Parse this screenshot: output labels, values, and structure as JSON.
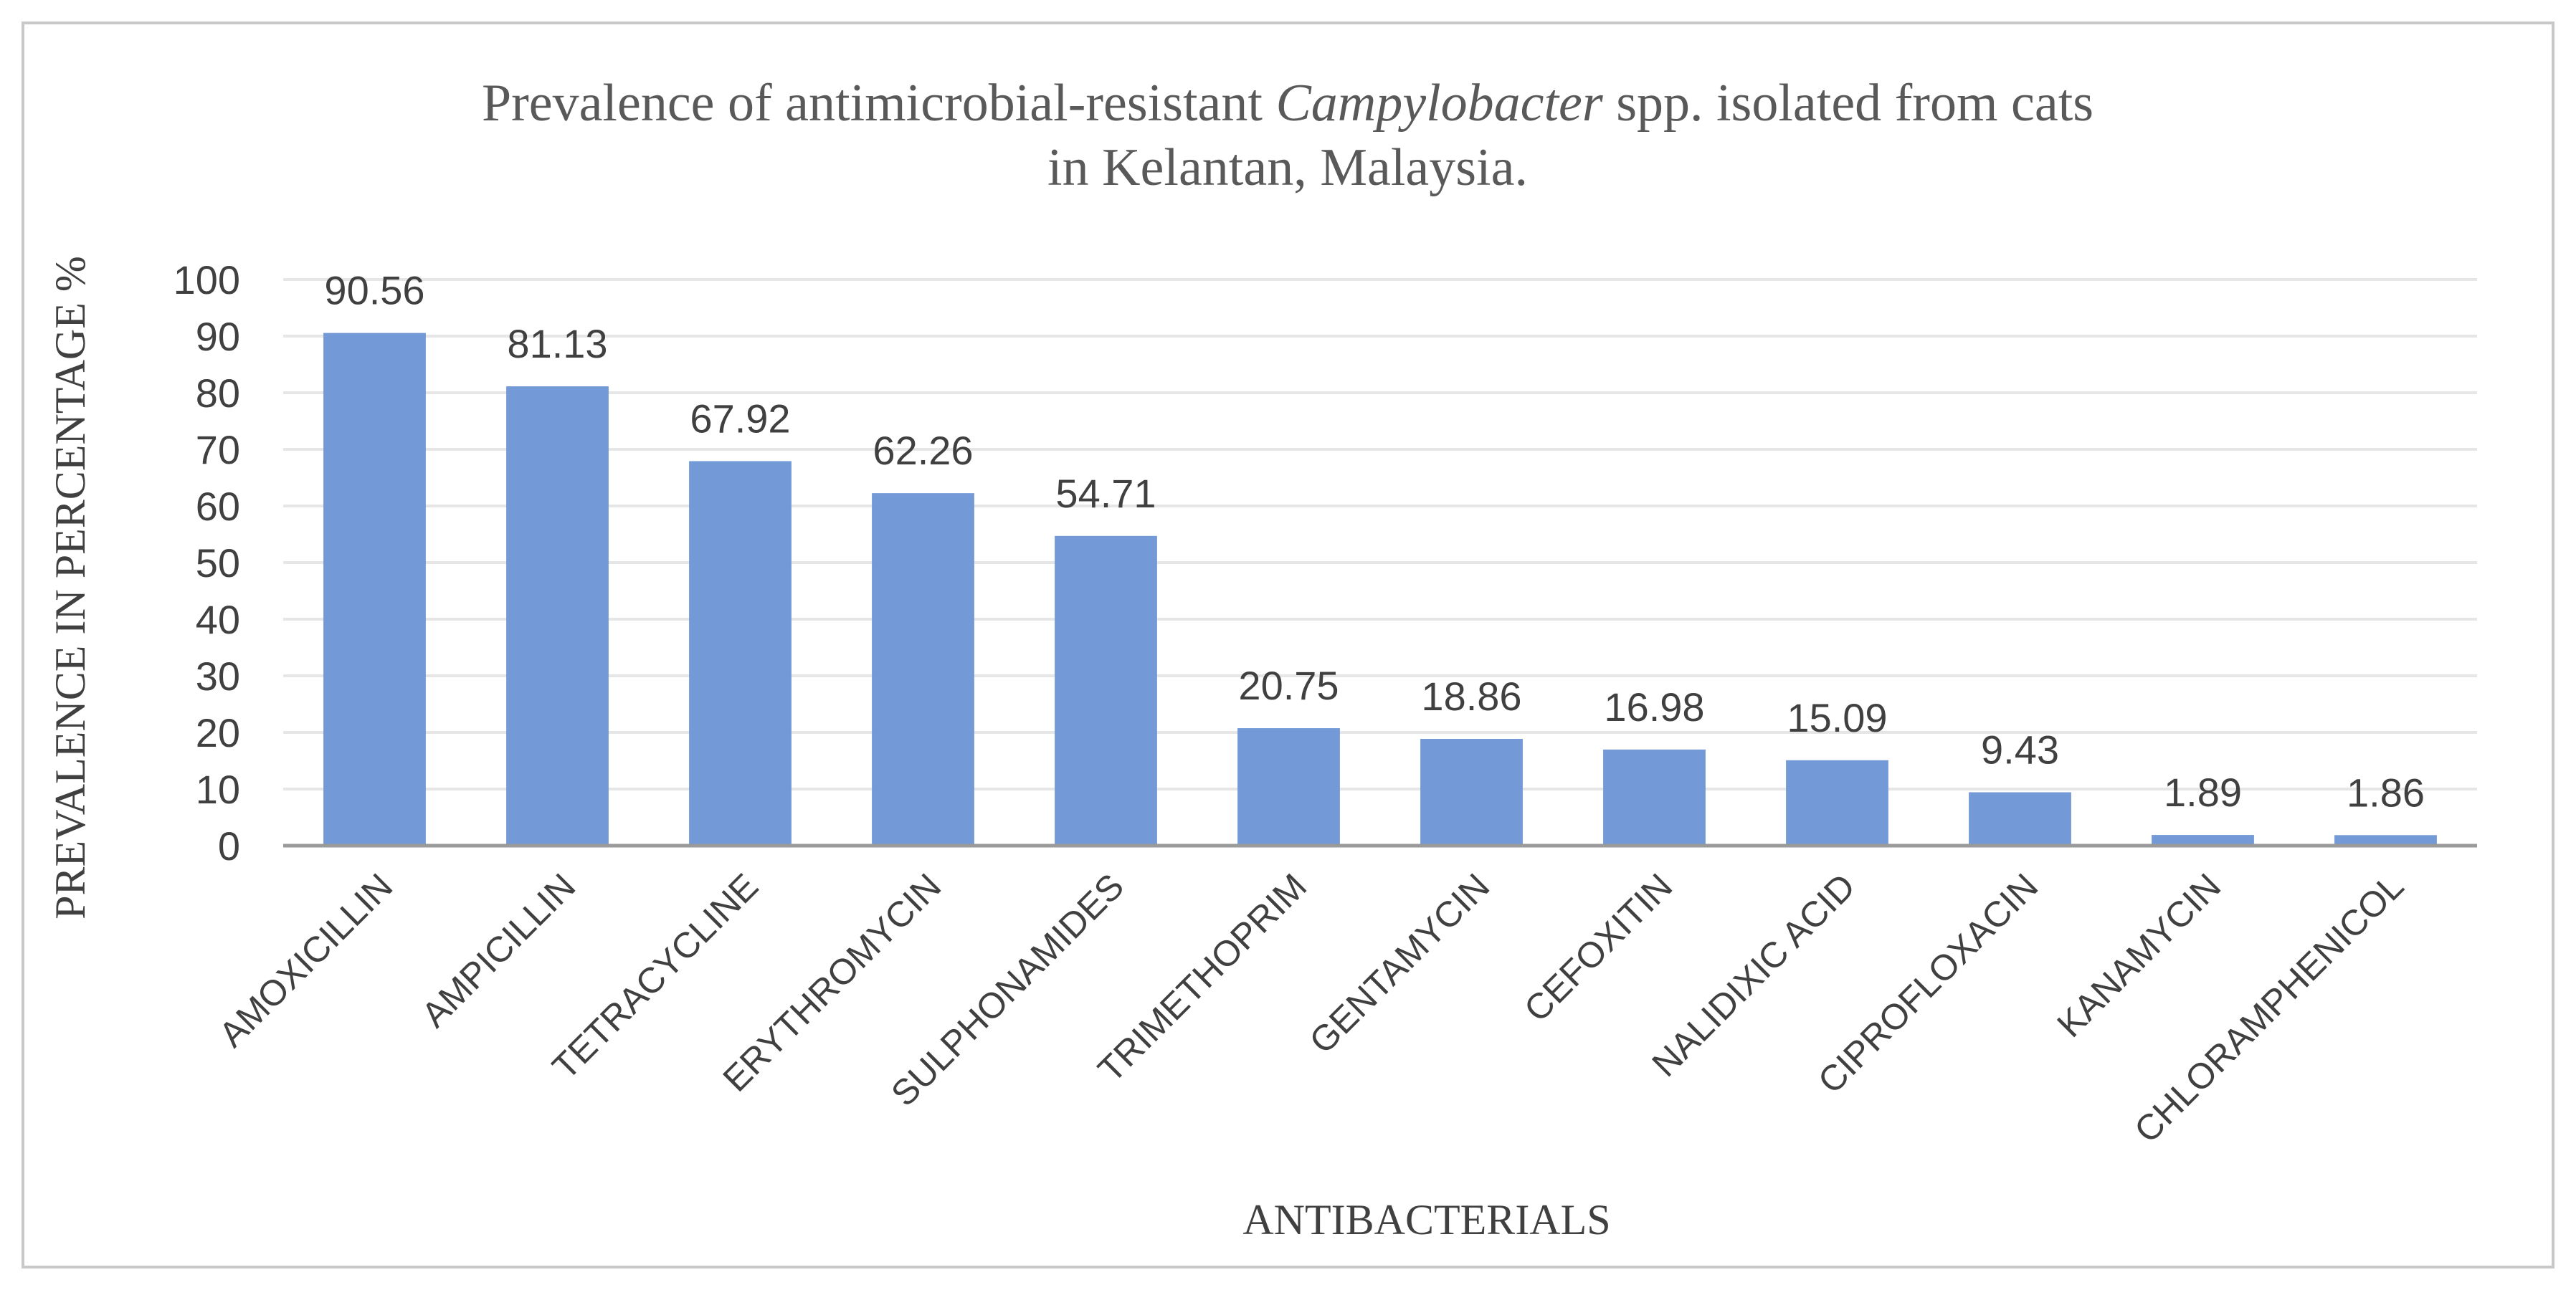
{
  "chart_data": {
    "type": "bar",
    "title_parts": [
      {
        "text": "Prevalence of antimicrobial-resistant ",
        "italic": false
      },
      {
        "text": "Campylobacter",
        "italic": true
      },
      {
        "text": " spp. isolated from cats",
        "italic": false
      }
    ],
    "title_line2": "in Kelantan, Malaysia.",
    "xlabel": "ANTIBACTERIALS",
    "ylabel": "PREVALENCE IN PERCENTAGE %",
    "ylim": [
      0,
      100
    ],
    "yticks": [
      0,
      10,
      20,
      30,
      40,
      50,
      60,
      70,
      80,
      90,
      100
    ],
    "grid": true,
    "legend": "none",
    "colors": {
      "bar": "#7399d6",
      "grid": "#e6e6e6",
      "axis": "#9a9a9a",
      "frame": "#c8c8c8"
    },
    "categories": [
      "AMOXICILLIN",
      "AMPICILLIN",
      "TETRACYCLINE",
      "ERYTHROMYCIN",
      "SULPHONAMIDES",
      "TRIMETHOPRIM",
      "GENTAMYCIN",
      "CEFOXITIN",
      "NALIDIXIC ACID",
      "CIPROFLOXACIN",
      "KANAMYCIN",
      "CHLORAMPHENICOL"
    ],
    "values": [
      90.56,
      81.13,
      67.92,
      62.26,
      54.71,
      20.75,
      18.86,
      16.98,
      15.09,
      9.43,
      1.89,
      1.86
    ],
    "data_labels": [
      "90.56",
      "81.13",
      "67.92",
      "62.26",
      "54.71",
      "20.75",
      "18.86",
      "16.98",
      "15.09",
      "9.43",
      "1.89",
      "1.86"
    ]
  }
}
